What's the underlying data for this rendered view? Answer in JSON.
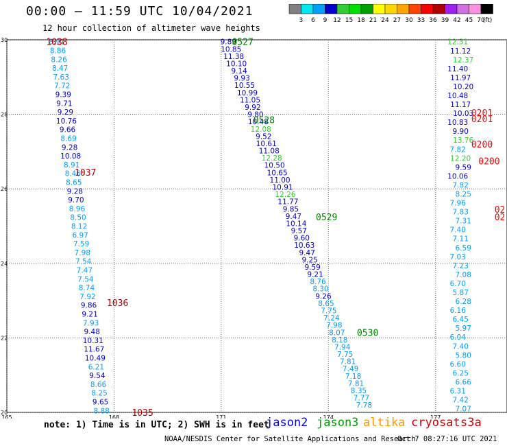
{
  "header": {
    "title": "00:00 – 11:59 UTC 10/04/2021",
    "subtitle": "12 hour collection of altimeter wave heights"
  },
  "colorbar": {
    "labels": [
      "3",
      "6",
      "9",
      "12",
      "15",
      "18",
      "21",
      "24",
      "27",
      "30",
      "33",
      "36",
      "39",
      "42",
      "45",
      "70"
    ],
    "unit": "(ft)",
    "colors": [
      "#808080",
      "#00e5ee",
      "#00a0ff",
      "#0000cd",
      "#32cd32",
      "#00e000",
      "#00a000",
      "#ffff00",
      "#ffd700",
      "#ffa500",
      "#ff4500",
      "#ff0000",
      "#b00000",
      "#a020f0",
      "#d070e0",
      "#ff90e0",
      "#000000"
    ]
  },
  "map": {
    "lat_range": [
      20,
      30
    ],
    "lon_range": [
      165,
      179
    ],
    "lat_ticks": [
      "30",
      "28",
      "26",
      "24",
      "22",
      "20"
    ],
    "lon_ticks": [
      "165",
      "168",
      "171",
      "174",
      "177"
    ],
    "tracks": [
      {
        "satellite": "cryosat",
        "values": [
          {
            "v": "8.91",
            "c": "#00a0ff"
          },
          {
            "v": "8.86",
            "c": "#00a0ff"
          },
          {
            "v": "8.26",
            "c": "#00a0ff"
          },
          {
            "v": "8.47",
            "c": "#00a0ff"
          },
          {
            "v": "7.63",
            "c": "#00a0ff"
          },
          {
            "v": "7.72",
            "c": "#00a0ff"
          },
          {
            "v": "9.39",
            "c": "#0000cd"
          },
          {
            "v": "9.71",
            "c": "#0000cd"
          },
          {
            "v": "9.29",
            "c": "#0000cd"
          },
          {
            "v": "10.76",
            "c": "#0000cd"
          },
          {
            "v": "9.66",
            "c": "#0000cd"
          },
          {
            "v": "8.69",
            "c": "#00a0ff"
          },
          {
            "v": "9.28",
            "c": "#0000cd"
          },
          {
            "v": "10.08",
            "c": "#0000cd"
          },
          {
            "v": "8.91",
            "c": "#00a0ff"
          },
          {
            "v": "8.46",
            "c": "#00a0ff"
          },
          {
            "v": "8.65",
            "c": "#00a0ff"
          },
          {
            "v": "9.28",
            "c": "#0000cd"
          },
          {
            "v": "9.70",
            "c": "#0000cd"
          },
          {
            "v": "8.96",
            "c": "#00a0ff"
          },
          {
            "v": "8.50",
            "c": "#00a0ff"
          },
          {
            "v": "8.12",
            "c": "#00a0ff"
          },
          {
            "v": "6.97",
            "c": "#00a0ff"
          },
          {
            "v": "7.59",
            "c": "#00a0ff"
          },
          {
            "v": "7.98",
            "c": "#00a0ff"
          },
          {
            "v": "7.54",
            "c": "#00a0ff"
          },
          {
            "v": "7.47",
            "c": "#00a0ff"
          },
          {
            "v": "7.54",
            "c": "#00a0ff"
          },
          {
            "v": "8.74",
            "c": "#00a0ff"
          },
          {
            "v": "7.92",
            "c": "#00a0ff"
          },
          {
            "v": "9.86",
            "c": "#0000cd"
          },
          {
            "v": "9.21",
            "c": "#0000cd"
          },
          {
            "v": "7.93",
            "c": "#00a0ff"
          },
          {
            "v": "9.48",
            "c": "#0000cd"
          },
          {
            "v": "10.31",
            "c": "#0000cd"
          },
          {
            "v": "11.67",
            "c": "#0000cd"
          },
          {
            "v": "10.49",
            "c": "#0000cd"
          },
          {
            "v": "6.21",
            "c": "#00a0ff"
          },
          {
            "v": "9.54",
            "c": "#0000cd"
          },
          {
            "v": "8.66",
            "c": "#00a0ff"
          },
          {
            "v": "8.25",
            "c": "#00a0ff"
          },
          {
            "v": "9.65",
            "c": "#0000cd"
          },
          {
            "v": "8.88",
            "c": "#00a0ff"
          }
        ],
        "times": [
          {
            "t": "1038",
            "lat": 29.95,
            "lon": 166.4
          },
          {
            "t": "1037",
            "lat": 26.45,
            "lon": 167.2
          },
          {
            "t": "1036",
            "lat": 22.95,
            "lon": 168.1
          },
          {
            "t": "1035",
            "lat": 20.0,
            "lon": 168.8
          }
        ],
        "time_color": "#b00000"
      },
      {
        "satellite": "jason3",
        "values": [
          {
            "v": "9.89",
            "c": "#0000cd"
          },
          {
            "v": "10.85",
            "c": "#0000cd"
          },
          {
            "v": "11.38",
            "c": "#0000cd"
          },
          {
            "v": "10.10",
            "c": "#0000cd"
          },
          {
            "v": "9.14",
            "c": "#0000cd"
          },
          {
            "v": "9.93",
            "c": "#0000cd"
          },
          {
            "v": "10.55",
            "c": "#0000cd"
          },
          {
            "v": "10.99",
            "c": "#0000cd"
          },
          {
            "v": "11.05",
            "c": "#0000cd"
          },
          {
            "v": "9.92",
            "c": "#0000cd"
          },
          {
            "v": "9.80",
            "c": "#0000cd"
          },
          {
            "v": "10.48",
            "c": "#0000cd"
          },
          {
            "v": "12.08",
            "c": "#32cd32"
          },
          {
            "v": "9.52",
            "c": "#0000cd"
          },
          {
            "v": "10.61",
            "c": "#0000cd"
          },
          {
            "v": "11.08",
            "c": "#0000cd"
          },
          {
            "v": "12.28",
            "c": "#32cd32"
          },
          {
            "v": "10.50",
            "c": "#0000cd"
          },
          {
            "v": "10.65",
            "c": "#0000cd"
          },
          {
            "v": "11.00",
            "c": "#0000cd"
          },
          {
            "v": "10.91",
            "c": "#0000cd"
          },
          {
            "v": "12.26",
            "c": "#32cd32"
          },
          {
            "v": "11.77",
            "c": "#0000cd"
          },
          {
            "v": "9.85",
            "c": "#0000cd"
          },
          {
            "v": "9.47",
            "c": "#0000cd"
          },
          {
            "v": "10.14",
            "c": "#0000cd"
          },
          {
            "v": "9.57",
            "c": "#0000cd"
          },
          {
            "v": "9.60",
            "c": "#0000cd"
          },
          {
            "v": "10.63",
            "c": "#0000cd"
          },
          {
            "v": "9.47",
            "c": "#0000cd"
          },
          {
            "v": "9.25",
            "c": "#0000cd"
          },
          {
            "v": "9.59",
            "c": "#0000cd"
          },
          {
            "v": "9.21",
            "c": "#0000cd"
          },
          {
            "v": "8.76",
            "c": "#00a0ff"
          },
          {
            "v": "8.30",
            "c": "#00a0ff"
          },
          {
            "v": "9.26",
            "c": "#0000cd"
          },
          {
            "v": "8.65",
            "c": "#00a0ff"
          },
          {
            "v": "7.75",
            "c": "#00a0ff"
          },
          {
            "v": "7.24",
            "c": "#00a0ff"
          },
          {
            "v": "7.98",
            "c": "#00a0ff"
          },
          {
            "v": "8.07",
            "c": "#00a0ff"
          },
          {
            "v": "8.18",
            "c": "#00a0ff"
          },
          {
            "v": "7.94",
            "c": "#00a0ff"
          },
          {
            "v": "7.75",
            "c": "#00a0ff"
          },
          {
            "v": "7.81",
            "c": "#00a0ff"
          },
          {
            "v": "7.49",
            "c": "#00a0ff"
          },
          {
            "v": "7.18",
            "c": "#00a0ff"
          },
          {
            "v": "7.81",
            "c": "#00a0ff"
          },
          {
            "v": "8.35",
            "c": "#00a0ff"
          },
          {
            "v": "7.77",
            "c": "#00a0ff"
          },
          {
            "v": "7.78",
            "c": "#00a0ff"
          }
        ],
        "times": [
          {
            "t": "0527",
            "lat": 29.95,
            "lon": 171.6
          },
          {
            "t": "0528",
            "lat": 27.85,
            "lon": 172.2
          },
          {
            "t": "0529",
            "lat": 25.25,
            "lon": 173.95
          },
          {
            "t": "0530",
            "lat": 22.15,
            "lon": 175.1
          }
        ],
        "time_color": "#008000"
      },
      {
        "satellite": "s3a",
        "values": [
          {
            "v": "12.31",
            "c": "#32cd32"
          },
          {
            "v": "11.12",
            "c": "#0000cd"
          },
          {
            "v": "12.37",
            "c": "#32cd32"
          },
          {
            "v": "11.40",
            "c": "#0000cd"
          },
          {
            "v": "11.97",
            "c": "#0000cd"
          },
          {
            "v": "10.20",
            "c": "#0000cd"
          },
          {
            "v": "10.48",
            "c": "#0000cd"
          },
          {
            "v": "11.17",
            "c": "#0000cd"
          },
          {
            "v": "10.03",
            "c": "#0000cd"
          },
          {
            "v": "10.83",
            "c": "#0000cd"
          },
          {
            "v": "9.90",
            "c": "#0000cd"
          },
          {
            "v": "13.76",
            "c": "#32cd32"
          },
          {
            "v": "7.82",
            "c": "#00a0ff"
          },
          {
            "v": "12.20",
            "c": "#32cd32"
          },
          {
            "v": "9.59",
            "c": "#0000cd"
          },
          {
            "v": "10.06",
            "c": "#0000cd"
          },
          {
            "v": "7.82",
            "c": "#00a0ff"
          },
          {
            "v": "8.25",
            "c": "#00a0ff"
          },
          {
            "v": "7.96",
            "c": "#00a0ff"
          },
          {
            "v": "7.83",
            "c": "#00a0ff"
          },
          {
            "v": "7.31",
            "c": "#00a0ff"
          },
          {
            "v": "7.40",
            "c": "#00a0ff"
          },
          {
            "v": "7.11",
            "c": "#00a0ff"
          },
          {
            "v": "6.59",
            "c": "#00a0ff"
          },
          {
            "v": "7.03",
            "c": "#00a0ff"
          },
          {
            "v": "7.23",
            "c": "#00a0ff"
          },
          {
            "v": "7.08",
            "c": "#00a0ff"
          },
          {
            "v": "6.70",
            "c": "#00a0ff"
          },
          {
            "v": "5.87",
            "c": "#00a0ff"
          },
          {
            "v": "6.28",
            "c": "#00a0ff"
          },
          {
            "v": "6.16",
            "c": "#00a0ff"
          },
          {
            "v": "6.45",
            "c": "#00a0ff"
          },
          {
            "v": "5.97",
            "c": "#00a0ff"
          },
          {
            "v": "6.04",
            "c": "#00a0ff"
          },
          {
            "v": "7.40",
            "c": "#00a0ff"
          },
          {
            "v": "5.80",
            "c": "#00a0ff"
          },
          {
            "v": "6.60",
            "c": "#00a0ff"
          },
          {
            "v": "6.25",
            "c": "#00a0ff"
          },
          {
            "v": "6.66",
            "c": "#00a0ff"
          },
          {
            "v": "6.31",
            "c": "#00a0ff"
          },
          {
            "v": "7.42",
            "c": "#00a0ff"
          },
          {
            "v": "7.07",
            "c": "#00a0ff"
          }
        ],
        "times": [
          {
            "t": "0201",
            "lat": 28.05,
            "lon": 178.3
          },
          {
            "t": "0201",
            "lat": 27.88,
            "lon": 178.3
          },
          {
            "t": "0200",
            "lat": 27.2,
            "lon": 178.3
          },
          {
            "t": "0200",
            "lat": 26.75,
            "lon": 178.5
          },
          {
            "t": "02",
            "lat": 25.45,
            "lon": 178.8
          },
          {
            "t": "02",
            "lat": 25.25,
            "lon": 178.8
          }
        ],
        "time_color": "#ff0000"
      }
    ]
  },
  "footer": {
    "note": "note: 1) Time is in UTC; 2) SWH is in feet",
    "satellites": [
      {
        "name": "jason2",
        "color": "#0000ff"
      },
      {
        "name": "jason3",
        "color": "#00a000"
      },
      {
        "name": "altika",
        "color": "#ff9900"
      },
      {
        "name": "cryosat",
        "color": "#cc0000"
      },
      {
        "name": "s3a",
        "color": "#cc0000"
      }
    ],
    "credit": "NOAA/NESDIS Center for Satellite Applications and Research",
    "date": "Oct  7 08:27:16 UTC 2021"
  }
}
